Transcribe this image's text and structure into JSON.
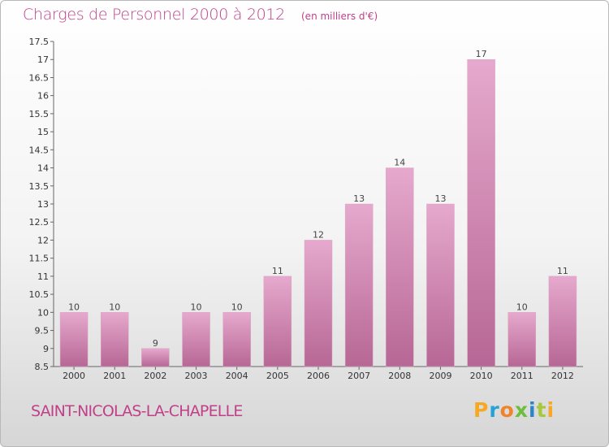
{
  "header": {
    "title": "Charges de Personnel 2000 à 2012",
    "subtitle": "(en milliers d'€)"
  },
  "footer": {
    "commune": "SAINT-NICOLAS-LA-CHAPELLE",
    "logo_letters": [
      "P",
      "r",
      "o",
      "x",
      "i",
      "t",
      "i"
    ]
  },
  "colors": {
    "bar_top": "#e6a9cd",
    "bar_bottom": "#b76795",
    "accent": "#c0408a"
  },
  "chart_data": {
    "type": "bar",
    "title": "Charges de Personnel 2000 à 2012",
    "subtitle": "(en milliers d'€)",
    "categories": [
      "2000",
      "2001",
      "2002",
      "2003",
      "2004",
      "2005",
      "2006",
      "2007",
      "2008",
      "2009",
      "2010",
      "2011",
      "2012"
    ],
    "values": [
      10,
      10,
      9,
      10,
      10,
      11,
      12,
      13,
      14,
      13,
      17,
      10,
      11
    ],
    "ylim": [
      8.5,
      17.5
    ],
    "yticks": [
      "8.5",
      "9",
      "9.5",
      "10",
      "10.5",
      "11",
      "11.5",
      "12",
      "12.5",
      "13",
      "13.5",
      "14",
      "14.5",
      "15",
      "15.5",
      "16",
      "16.5",
      "17",
      "17.5"
    ],
    "grid": false,
    "xlabel": "",
    "ylabel": ""
  }
}
